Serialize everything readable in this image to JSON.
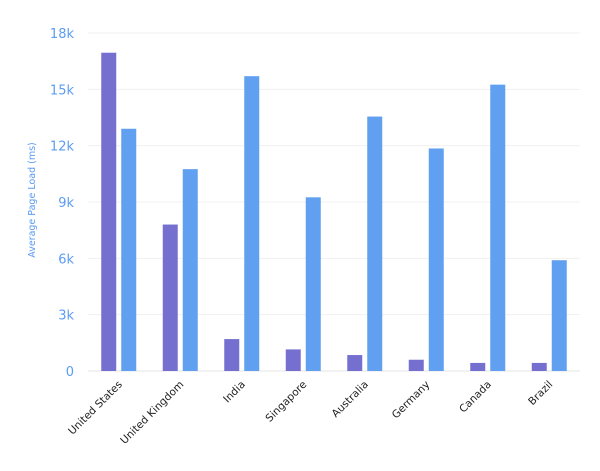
{
  "chart_data": {
    "type": "bar",
    "title": "",
    "xlabel": "",
    "ylabel": "Average Page Load (ms)",
    "categories": [
      "United States",
      "United Kingdom",
      "India",
      "Singapore",
      "Australia",
      "Germany",
      "Canada",
      "Brazil"
    ],
    "series": [
      {
        "values": [
          16950,
          7800,
          1700,
          1150,
          850,
          600,
          430,
          430
        ],
        "color": "#7570cf"
      },
      {
        "values": [
          12900,
          10750,
          15700,
          9250,
          13550,
          11850,
          15250,
          5900
        ],
        "color": "#619ff0"
      }
    ],
    "ylim": [
      0,
      18000
    ],
    "yticks": [
      "0",
      "3k",
      "6k",
      "9k",
      "12k",
      "15k",
      "18k"
    ],
    "grid": true,
    "legend": "none"
  }
}
